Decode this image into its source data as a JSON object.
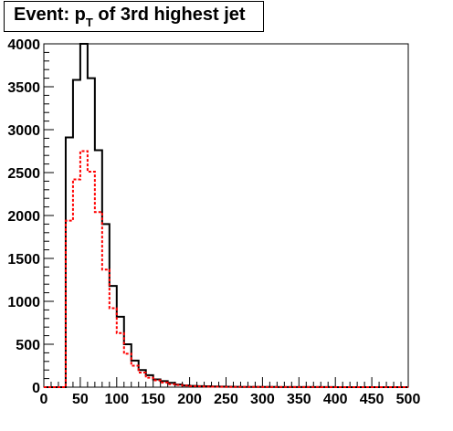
{
  "chart_data": {
    "type": "histogram",
    "title": {
      "main": "Event: p",
      "subscript": "T",
      "rest": " of 3rd highest jet"
    },
    "xlim": [
      0,
      500
    ],
    "ylim": [
      0,
      4000
    ],
    "bin_width": 10,
    "x_ticks": [
      "0",
      "50",
      "100",
      "150",
      "200",
      "250",
      "300",
      "350",
      "400",
      "450",
      "500"
    ],
    "y_ticks": [
      "0",
      "500",
      "1000",
      "1500",
      "2000",
      "2500",
      "3000",
      "3500",
      "4000"
    ],
    "grid": false,
    "series": [
      {
        "style": "solid",
        "color": "#000000",
        "values": [
          0,
          0,
          0,
          2910,
          3580,
          4020,
          3600,
          2760,
          1900,
          1180,
          820,
          500,
          310,
          200,
          140,
          90,
          70,
          50,
          30,
          20,
          15,
          12,
          10,
          8,
          6,
          5,
          4,
          3,
          3,
          2,
          2,
          2,
          1,
          1,
          1,
          1,
          1,
          1,
          1,
          1,
          0,
          0,
          0,
          0,
          0,
          0,
          0,
          0,
          0,
          0
        ]
      },
      {
        "style": "dotted",
        "color": "#ff0000",
        "values": [
          0,
          0,
          0,
          1940,
          2420,
          2750,
          2510,
          2040,
          1370,
          920,
          630,
          390,
          250,
          170,
          110,
          80,
          55,
          35,
          25,
          18,
          12,
          9,
          7,
          5,
          4,
          3,
          3,
          2,
          2,
          2,
          1,
          1,
          1,
          1,
          1,
          1,
          1,
          1,
          0,
          0,
          0,
          0,
          0,
          0,
          0,
          0,
          0,
          0,
          0,
          0
        ]
      }
    ]
  }
}
